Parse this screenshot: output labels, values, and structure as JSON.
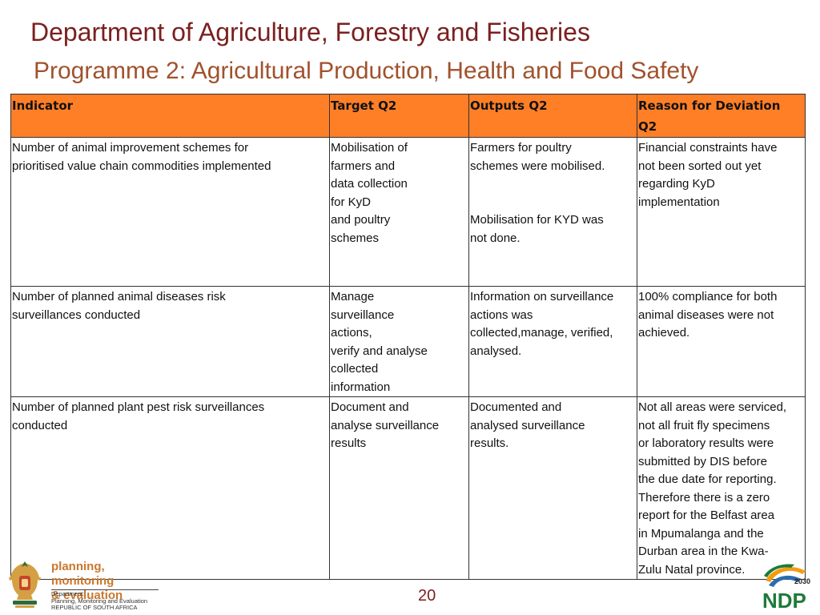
{
  "header": {
    "title": "Department of Agriculture, Forestry and Fisheries",
    "subtitle": "Programme 2: Agricultural Production, Health and Food Safety"
  },
  "table": {
    "headers": [
      "Indicator",
      "Target Q2",
      "Outputs Q2",
      "Reason for Deviation\nQ2"
    ],
    "rows": [
      {
        "indicator": "Number of animal improvement schemes for\nprioritised value chain commodities implemented",
        "target": "Mobilisation of\nfarmers and\ndata collection\nfor KyD\nand poultry\nschemes",
        "outputs": "Farmers for poultry\nschemes were mobilised.\n\n\nMobilisation for KYD was\nnot done.",
        "reason": "Financial constraints have\nnot been sorted out yet\nregarding KyD\nimplementation"
      },
      {
        "indicator": "Number of planned animal diseases risk\nsurveillances conducted",
        "target": "Manage\nsurveillance\nactions,\nverify and analyse\ncollected\ninformation",
        "outputs": "Information on surveillance\nactions was\ncollected,manage, verified,\nanalysed.",
        "reason": "100% compliance for both\nanimal diseases were not\nachieved."
      },
      {
        "indicator": "Number of planned plant pest risk surveillances\nconducted",
        "target": "Document and\nanalyse surveillance\nresults",
        "outputs": "Documented and\nanalysed surveillance\nresults.",
        "reason": "Not all areas were serviced,\nnot all fruit fly specimens\nor laboratory results were\nsubmitted by DIS before\nthe due date for reporting.\nTherefore there is a zero\nreport for the Belfast area\nin Mpumalanga and the\nDurban area in the Kwa-\nZulu Natal province."
      }
    ]
  },
  "footer": {
    "page_number": "20",
    "pme_title": "planning, monitoring\n& evaluation",
    "pme_dept": "Department:\nPlanning, Monitoring and Evaluation\nREPUBLIC OF SOUTH AFRICA",
    "ndp_label": "NDP",
    "ndp_year": "2030"
  },
  "colors": {
    "title": "#7b1f1f",
    "subtitle": "#a0522d",
    "header_fill": "#ff7f27",
    "pme_orange": "#c9782c",
    "ndp_green": "#1e7a3a"
  },
  "icons": [
    "coat-of-arms-icon",
    "ndp-2030-logo"
  ]
}
